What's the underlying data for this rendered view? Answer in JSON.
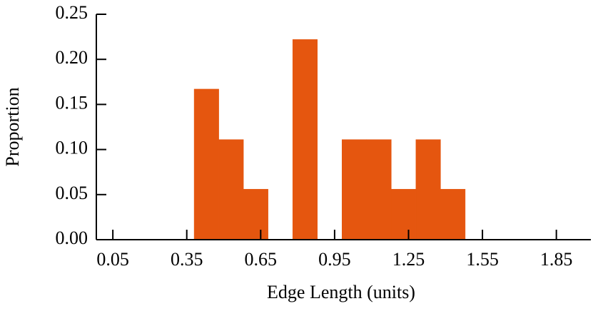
{
  "chart_data": {
    "type": "histogram",
    "xlabel": "Edge Length (units)",
    "ylabel": "Proportion",
    "bins": [
      0.38,
      0.48,
      0.58,
      0.68,
      0.78,
      0.88,
      0.98,
      1.08,
      1.18,
      1.28,
      1.38,
      1.48
    ],
    "values": [
      0.167,
      0.111,
      0.056,
      0,
      0.222,
      0,
      0.111,
      0.111,
      0.056,
      0.111,
      0.056
    ],
    "color": "#e5560f",
    "xlim": [
      -0.017,
      1.99
    ],
    "ylim": [
      0,
      0.25
    ],
    "xticks": [
      0.05,
      0.35,
      0.65,
      0.95,
      1.25,
      1.55,
      1.85
    ],
    "yticks": [
      {
        "value": 0,
        "label": "0.00"
      },
      0.05,
      {
        "value": 0.1,
        "label": "0.10"
      },
      0.15,
      {
        "value": 0.2,
        "label": "0.20"
      },
      0.25
    ],
    "grid": false
  }
}
